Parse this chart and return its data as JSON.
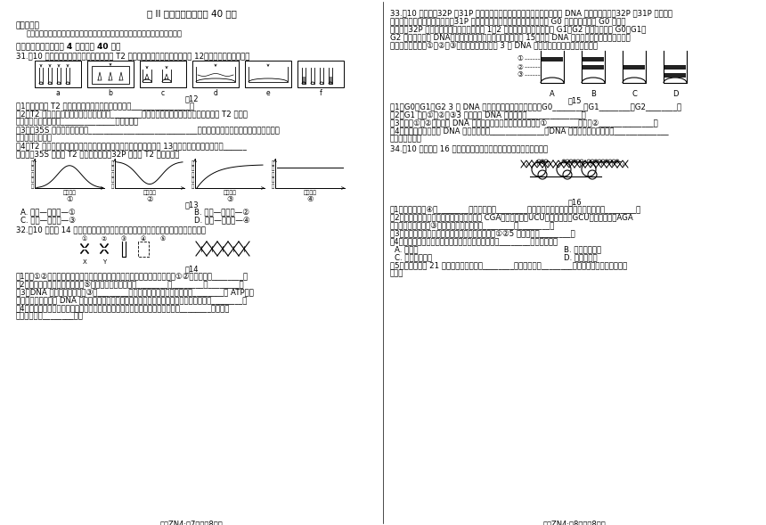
{
  "background_color": "#ffffff",
  "footer_left": "生物ZN4·第7页（共8页）",
  "footer_right": "生物ZN4·第8页（共8页）",
  "title": "第 II 卷（非选择题，共 40 分）",
  "notice_bold": "注意事项：",
  "notice_text": "答目本用黑色碳素笔在答题卡上各题的答题区域内作答，在试题卷上作答无效。",
  "section_bold": "二、简答题（本大题共 4 小题，共 40 分）",
  "q31_line": "31.（10 分）某生物兴趣小组用模型模拟的 T2 噬菌体侵染细菌实验的过程如图 12，据图回答下列问题：",
  "fig12_label": "图12",
  "fig12_sublabels": [
    "a",
    "b",
    "c",
    "d",
    "e",
    "f"
  ],
  "q31_q1": "（1）请将上图 T2 噬菌体侵染细菌的标号进行排序：_______________。",
  "q31_q2a": "（2）T2 噬菌体的遗传物质复制发生在图中________（用字母和箭头表示）过程之间，子代 T2 噬菌体",
  "q31_q2b": "的外壳是在大肠杆菌的______________上合成的。",
  "q31_q3a": "（3）以35S 标记组为例，如果____________________________，可能造成的结果是上清液和沉淀物都出",
  "q31_q3b": "现较强的放射性。",
  "q31_q4a": "（4）T2 噬菌体与细菌保温时间长短与放射性高低的关系图可能如图 13，下列关系中最合理的是______",
  "q31_q4b": "（甲组为35S 标记的 T2 噬菌体，乙组为32P 标记的 T2 噬菌体）。",
  "fig13_label": "图13",
  "fig13_ylabels": [
    "放\n射\n性\n高\n低",
    "放\n射\n性\n高\n低",
    "放\n射\n性\n高\n低",
    "放\n射\n性\n高\n低"
  ],
  "fig13_xlabels": [
    "保温时间",
    "保温时间",
    "保温时间",
    "保温时间"
  ],
  "fig13_nums": [
    "①",
    "②",
    "③",
    "④"
  ],
  "q31_ca": "A. 甲组—上清液—①",
  "q31_cb": "B. 乙组—上清液—②",
  "q31_cc": "C. 甲组—沉淀物—③",
  "q31_cd": "D. 乙组—沉淀物—④",
  "q32_line": "32.（10 分）图 14 表示与果细胞重核物质相关结构的示意图，请据图回答下列问题：",
  "fig14_label": "图14",
  "q32_q1": "（1）若①②表示某一物质在某细胞体细胞不同分裂时期的两种结构形态，则①②分别表示：________。",
  "q32_q2": "（2）请按照自上而下的顺序写出⑤中碱基序列的中文名称________、________、________。",
  "q32_q3a": "（3）DNA 分子复制时，图中③处________发生断裂，此过程需要的条件是________和 ATP，通",
  "q32_q3b": "过复制，形成的子代 DNA 的两条链，一条来自亲代，一条是重新形成的，这种复制方式称为________。",
  "q32_q4a": "（4）图示为果蝇一个精原细胞中的染色体组成，请写出图示果蝇细胞的基因型：________，它所产",
  "q32_q4b": "生的精细胞有________种。",
  "q33_l1": "33.（10 分）含有32P 或31P 的磷酸，两者化学性质几乎相同，都可参与 DNA 分子的组成，但32P 比31P 质量大，",
  "q33_l2": "现将某哺乳动物的细胞放在含有31P 磷酸的培养基中，连续培养数代后得到 G0 代细胞。然后将 G0 代细胞",
  "q33_l3": "移至含有32P 磷酸的培养基中培养，经过第 1、2 次细胞分裂后，分别得到 G1、G2 代细胞。再从 G0、G1、",
  "q33_l4": "G2 代细胞中提取 DNA，经密度梯度离心后得到的结果如图 15，由于 DNA 分子质量不同，因此在离心管",
  "q33_l5": "内的分布不同。若①、②、③分别表示轻、中、重 3 种 DNA 分子的位置，请回答下列问题：",
  "fig15_label": "图15",
  "fig15_sublabels": [
    "A",
    "B",
    "C",
    "D"
  ],
  "q33_q1": "（1）G0、G1、G2 3 代 DNA 离心后的试管分别是图中的：G0________，G1________，G2________。",
  "q33_q2": "（2）G1 代在①、②、③3 条带中的 DNA 数的比例是______________。",
  "q33_q3": "（3）图中①、②两条带中 DNA 分子所含的同位素磷分别是：条带①________，条带②______________。",
  "q33_q4a": "（4）上述实验结果证明 DNA 的复制方式是______________。DNA 的自我复制能使生物的______________",
  "q33_q4b": "保持相对稳定。",
  "q34_line": "34.（10 分）如图 16 为遗传信息的表达示意图，据图回答下列问题：",
  "fig16_label": "图16",
  "q34_q1": "（1）图中的物质④为________，它是以图中________通过模板合成的，该过程所需要的酶是________。",
  "q34_q2a": "（2）已知相关密码子所编码的氨基酸分别为 CGA（精氨酸）、UCU（丝氨酸）、GCU（丙氨酸）、AGA",
  "q34_q2b": "（精氨酸），则图中③所代表的氨基酸分别为________、________。",
  "q34_q3": "（3）在同种生物的不同体细胞中，该图所示过程中①②5 不相同的是________。",
  "q34_q4a": "（4）图示过程不可能发生在人体的下列哪种细胞中？________（填序号）。",
  "q34_q4_A": "A. 精原元",
  "q34_q4_B": "B. 口腔上皮细胞",
  "q34_q4_C": "C. 成熟的红细胞",
  "q34_q4_D": "D. 骨骼肌细胞",
  "q34_q5a": "（5）生物体编码 21 种氨基酸的密码子有________种，密码子第________个碱基改变对氨基酸的影响",
  "q34_q5b": "较小。"
}
